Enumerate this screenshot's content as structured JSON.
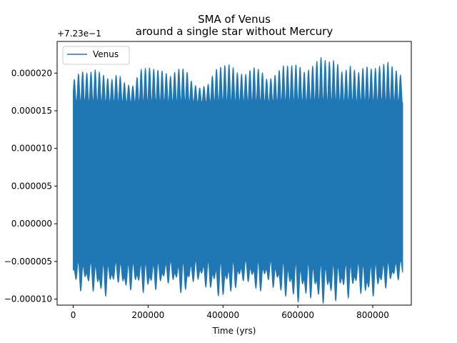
{
  "chart_data": {
    "type": "line",
    "title_lines": [
      "SMA of Venus",
      "around a single star without Mercury"
    ],
    "xlabel": "Time (yrs)",
    "ylabel": "",
    "offset_text": "+7.23e−1",
    "x_ticks": [
      0,
      200000,
      400000,
      600000,
      800000
    ],
    "x_tick_labels": [
      "0",
      "200000",
      "400000",
      "600000",
      "800000"
    ],
    "y_ticks": [
      -1e-05,
      -5e-06,
      0,
      5e-06,
      1e-05,
      1.5e-05,
      2e-05
    ],
    "y_tick_labels": [
      "−0.000010",
      "−0.000005",
      "0.000000",
      "0.000005",
      "0.000010",
      "0.000015",
      "0.000020"
    ],
    "xlim": [
      -43000,
      903000
    ],
    "ylim": [
      -1.08e-05,
      2.42e-05
    ],
    "legend_position": "upper-left",
    "grid": false,
    "series": [
      {
        "name": "Venus",
        "color": "#1f77b4",
        "band_x": [
          0,
          20000,
          40000,
          60000,
          80000,
          100000,
          120000,
          140000,
          160000,
          180000,
          200000,
          220000,
          240000,
          260000,
          280000,
          300000,
          320000,
          340000,
          360000,
          380000,
          400000,
          420000,
          440000,
          460000,
          480000,
          500000,
          520000,
          540000,
          560000,
          580000,
          600000,
          620000,
          640000,
          660000,
          680000,
          700000,
          720000,
          740000,
          760000,
          780000,
          800000,
          820000,
          840000,
          860000,
          880000
        ],
        "band_upper": [
          1.9e-05,
          2.03e-05,
          2e-05,
          2.05e-05,
          1.98e-05,
          1.9e-05,
          2e-05,
          1.85e-05,
          1.83e-05,
          2.05e-05,
          2.08e-05,
          2.05e-05,
          2.03e-05,
          1.96e-05,
          2.06e-05,
          2.06e-05,
          1.85e-05,
          1.8e-05,
          1.85e-05,
          2.05e-05,
          2.1e-05,
          2.12e-05,
          2e-05,
          1.98e-05,
          2.08e-05,
          2.05e-05,
          1.9e-05,
          1.98e-05,
          2.1e-05,
          2.1e-05,
          2.12e-05,
          2e-05,
          2.1e-05,
          2.22e-05,
          2.15e-05,
          2.18e-05,
          2e-05,
          2.1e-05,
          2e-05,
          2.1e-05,
          2.05e-05,
          2.1e-05,
          2.15e-05,
          2.05e-05,
          1.95e-05
        ],
        "band_lower": [
          -6.8e-06,
          -8e-06,
          -7.5e-06,
          -8.2e-06,
          -8.8e-06,
          -7.8e-06,
          -7e-06,
          -8.5e-06,
          -7.5e-06,
          -8e-06,
          -8.2e-06,
          -7.8e-06,
          -7.5e-06,
          -7e-06,
          -8e-06,
          -8.5e-06,
          -7e-06,
          -7.2e-06,
          -7.8e-06,
          -8.5e-06,
          -8.8e-06,
          -8.2e-06,
          -7.8e-06,
          -6.8e-06,
          -7.8e-06,
          -8.2e-06,
          -7e-06,
          -8e-06,
          -8.5e-06,
          -8.8e-06,
          -9.2e-06,
          -9e-06,
          -8.6e-06,
          -9.5e-06,
          -8.8e-06,
          -9e-06,
          -8.2e-06,
          -8.8e-06,
          -7.5e-06,
          -9.2e-06,
          -8.5e-06,
          -8e-06,
          -7.5e-06,
          -7e-06,
          -6.5e-06
        ],
        "band_upper_typical": 1.6e-05,
        "band_lower_typical": -4.5e-06
      }
    ]
  }
}
